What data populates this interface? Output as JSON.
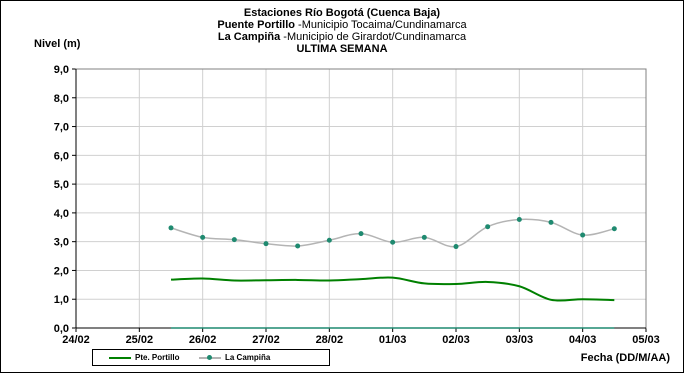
{
  "title": {
    "line1": "Estaciones Río Bogotá (Cuenca Baja)",
    "line2_bold": "Puente Portillo",
    "line2_rest": " -Municipio Tocaima/Cundinamarca",
    "line3_bold": "La Campiña",
    "line3_rest": " -Municipio de Girardot/Cundinamarca",
    "line4": "ULTIMA SEMANA"
  },
  "chart_data": {
    "type": "line",
    "ylabel": "Nivel (m)",
    "xlabel": "Fecha (DD/M/AA)",
    "x_ticks": [
      "24/02",
      "25/02",
      "26/02",
      "27/02",
      "28/02",
      "01/03",
      "02/03",
      "03/03",
      "04/03",
      "05/03"
    ],
    "y_ticks": [
      "0,0",
      "1,0",
      "2,0",
      "3,0",
      "4,0",
      "5,0",
      "6,0",
      "7,0",
      "8,0",
      "9,0"
    ],
    "ylim": [
      0,
      9
    ],
    "grid": true,
    "legend_position": "bottom-left",
    "series": [
      {
        "name": "Pte. Portillo",
        "color": "#008000",
        "markers": false,
        "x": [
          1.5,
          2.0,
          2.5,
          3.0,
          3.5,
          4.0,
          4.5,
          5.0,
          5.5,
          6.0,
          6.5,
          7.0,
          7.5,
          8.0,
          8.5
        ],
        "y": [
          1.68,
          1.72,
          1.65,
          1.66,
          1.67,
          1.65,
          1.7,
          1.75,
          1.55,
          1.53,
          1.6,
          1.45,
          0.98,
          1.0,
          0.97
        ]
      },
      {
        "name": "La Campiña",
        "color": "#b4b4b4",
        "markers": true,
        "marker_color": "#1f8a70",
        "x": [
          1.5,
          2.0,
          2.5,
          3.0,
          3.5,
          4.0,
          4.5,
          5.0,
          5.5,
          6.0,
          6.5,
          7.0,
          7.5,
          8.0,
          8.5
        ],
        "y": [
          3.48,
          3.15,
          3.07,
          2.93,
          2.85,
          3.05,
          3.28,
          2.98,
          3.15,
          2.83,
          3.52,
          3.77,
          3.67,
          3.23,
          3.45
        ]
      },
      {
        "name": "",
        "color": "#1f8a70",
        "markers": false,
        "x": [
          1.5,
          8.5
        ],
        "y": [
          0.0,
          0.0
        ]
      }
    ]
  }
}
